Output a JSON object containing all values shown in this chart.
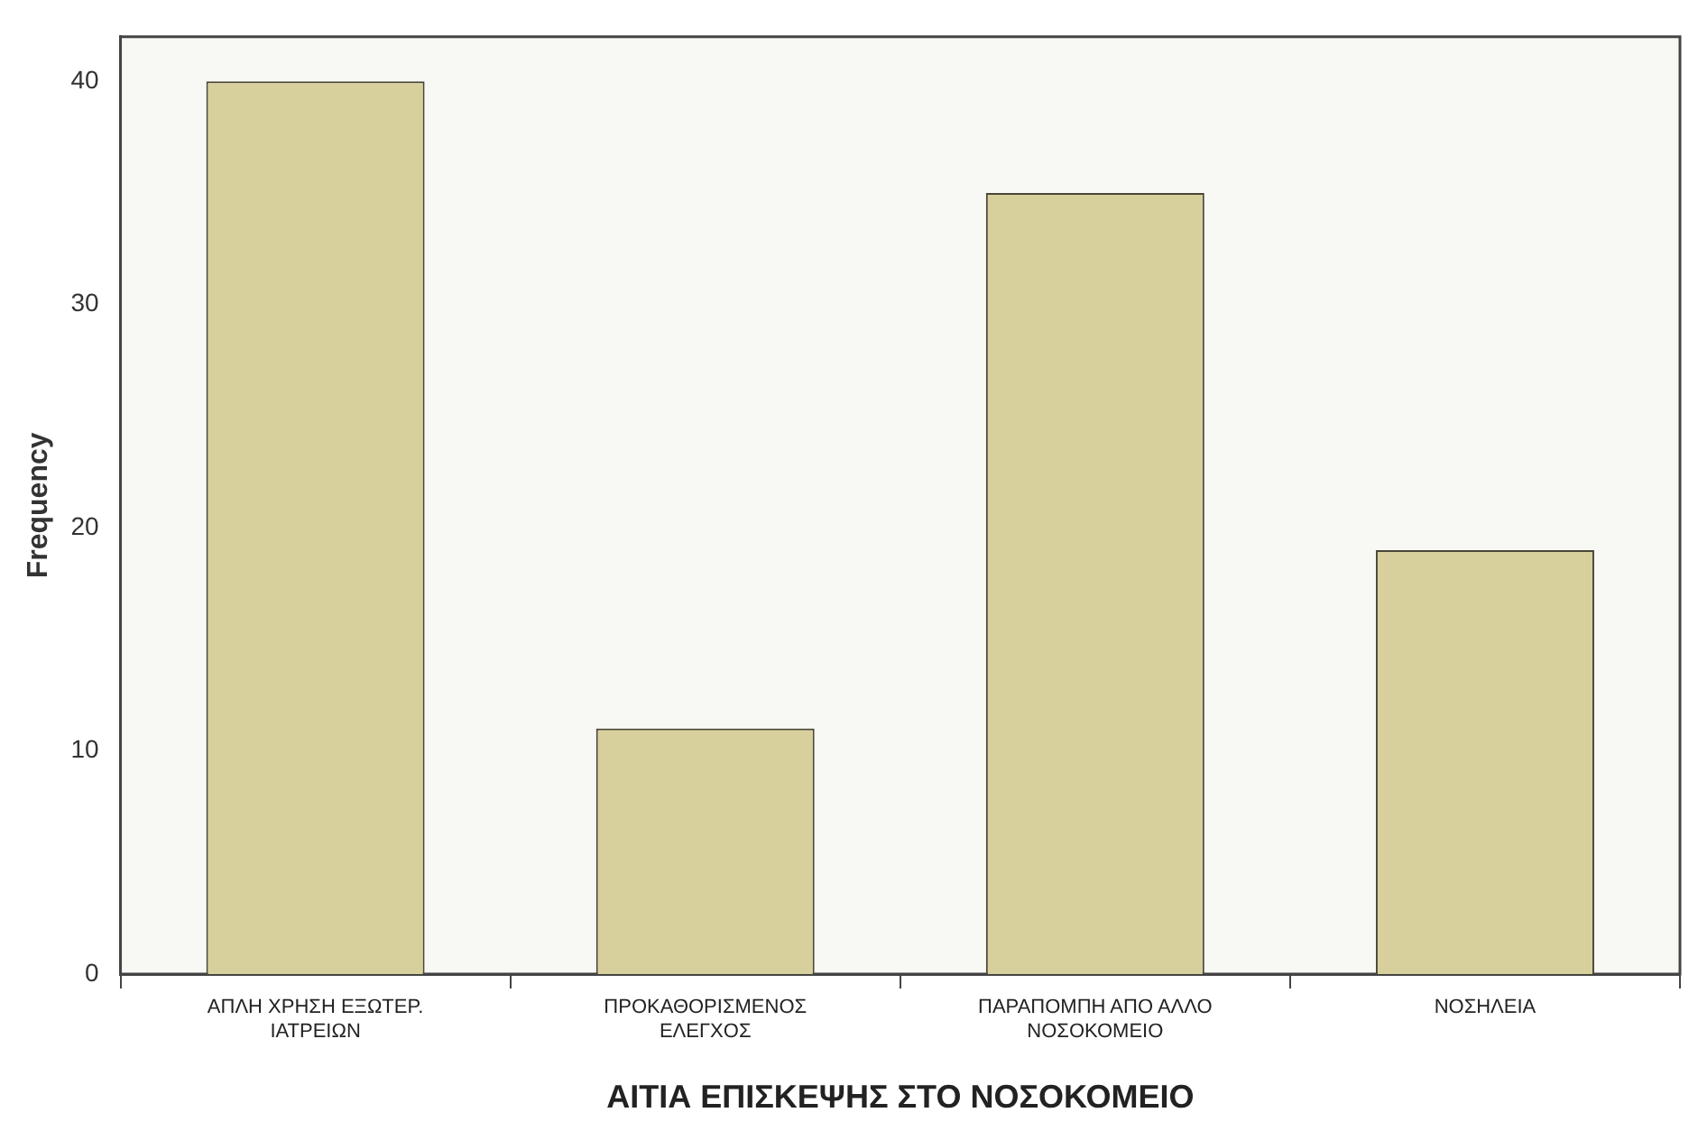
{
  "chart_data": {
    "type": "bar",
    "xlabel": "ΑΙΤΙΑ ΕΠΙΣΚΕΨΗΣ ΣΤΟ ΝΟΣΟΚΟΜΕΙΟ",
    "ylabel": "Frequency",
    "categories": [
      "ΑΠΛΗ ΧΡΗΣΗ ΕΞΩΤΕΡ. ΙΑΤΡΕΙΩΝ",
      "ΠΡΟΚΑΘΟΡΙΣΜΕΝΟΣ ΕΛΕΓΧΟΣ",
      "ΠΑΡΑΠΟΜΠΗ ΑΠΟ ΑΛΛΟ ΝΟΣΟΚΟΜΕΙΟ",
      "ΝΟΣΗΛΕΙΑ"
    ],
    "values": [
      40,
      11,
      35,
      19
    ],
    "color": "#d8d09c",
    "ylim": [
      0,
      42
    ],
    "yticks": [
      0,
      10,
      20,
      30,
      40
    ],
    "grid": false,
    "legend": false
  }
}
